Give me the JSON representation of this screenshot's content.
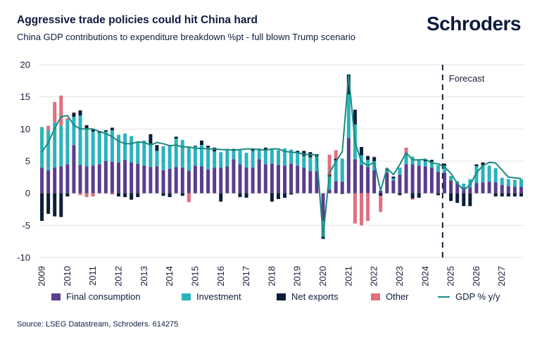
{
  "header": {
    "title": "Aggressive trade policies could hit China hard",
    "subtitle": "China GDP contributions to expenditure breakdown %pt - full blown Trump scenario",
    "brand": "Schroders"
  },
  "footer": {
    "source": "Source: LSEG Datastream, Schroders. 614275"
  },
  "colors": {
    "final_consumption": "#5b3d8c",
    "investment": "#2bb3bb",
    "net_exports": "#0b1f3a",
    "other": "#e0707e",
    "gdp": "#1b8a80",
    "grid": "#e3e3e3",
    "forecast_line": "#0b1f3a"
  },
  "chart_data": {
    "type": "bar",
    "stacked": true,
    "title": "China GDP contributions to expenditure breakdown %pt - full blown Trump scenario",
    "xlabel": "",
    "ylabel": "",
    "ylim": [
      -10,
      20
    ],
    "yticks": [
      20,
      15,
      10,
      5,
      0,
      -5,
      -10
    ],
    "x_tick_labels": [
      "2009",
      "2010",
      "2011",
      "2012",
      "2013",
      "2014",
      "2015",
      "2016",
      "2017",
      "2018",
      "2019",
      "2020",
      "2021",
      "2022",
      "2023",
      "2024",
      "2025",
      "2026",
      "2027"
    ],
    "grid": true,
    "legend_position": "bottom",
    "annotation": "Forecast",
    "forecast_start_period": "2024 Q4",
    "categories": [
      "2009 Q1",
      "2009 Q2",
      "2009 Q3",
      "2009 Q4",
      "2010 Q1",
      "2010 Q2",
      "2010 Q3",
      "2010 Q4",
      "2011 Q1",
      "2011 Q2",
      "2011 Q3",
      "2011 Q4",
      "2012 Q1",
      "2012 Q2",
      "2012 Q3",
      "2012 Q4",
      "2013 Q1",
      "2013 Q2",
      "2013 Q3",
      "2013 Q4",
      "2014 Q1",
      "2014 Q2",
      "2014 Q3",
      "2014 Q4",
      "2015 Q1",
      "2015 Q2",
      "2015 Q3",
      "2015 Q4",
      "2016 Q1",
      "2016 Q2",
      "2016 Q3",
      "2016 Q4",
      "2017 Q1",
      "2017 Q2",
      "2017 Q3",
      "2017 Q4",
      "2018 Q1",
      "2018 Q2",
      "2018 Q3",
      "2018 Q4",
      "2019 Q1",
      "2019 Q2",
      "2019 Q3",
      "2019 Q4",
      "2020 Q1",
      "2020 Q2",
      "2020 Q3",
      "2020 Q4",
      "2021 Q1",
      "2021 Q2",
      "2021 Q3",
      "2021 Q4",
      "2022 Q1",
      "2022 Q2",
      "2022 Q3",
      "2022 Q4",
      "2023 Q1",
      "2023 Q2",
      "2023 Q3",
      "2023 Q4",
      "2024 Q1",
      "2024 Q2",
      "2024 Q3",
      "2024 Q4",
      "2025 Q1",
      "2025 Q2",
      "2025 Q3",
      "2025 Q4",
      "2026 Q1",
      "2026 Q2",
      "2026 Q3",
      "2026 Q4",
      "2027 Q1",
      "2027 Q2",
      "2027 Q3",
      "2027 Q4"
    ],
    "series": [
      {
        "name": "Final consumption",
        "values": [
          4.0,
          3.6,
          4.0,
          4.2,
          4.5,
          7.5,
          4.4,
          4.2,
          4.3,
          4.5,
          5.0,
          4.9,
          4.8,
          5.2,
          4.8,
          4.6,
          4.3,
          4.1,
          4.2,
          3.6,
          3.8,
          4.1,
          4.0,
          3.5,
          4.3,
          4.2,
          3.7,
          4.0,
          4.0,
          4.2,
          5.3,
          4.5,
          4.0,
          4.0,
          5.3,
          4.5,
          4.6,
          4.4,
          4.3,
          4.6,
          4.3,
          4.0,
          3.5,
          3.4,
          -4.3,
          0.6,
          1.9,
          1.8,
          8.6,
          5.3,
          4.4,
          4.1,
          3.6,
          0.4,
          3.2,
          2.0,
          2.9,
          4.5,
          4.5,
          4.3,
          4.2,
          4.0,
          3.3,
          3.2,
          2.0,
          1.6,
          0.9,
          0.9,
          1.6,
          1.7,
          1.8,
          1.7,
          1.3,
          1.1,
          1.0,
          1.0
        ]
      },
      {
        "name": "Investment",
        "values": [
          6.3,
          6.2,
          7.0,
          6.3,
          6.9,
          4.4,
          7.7,
          5.9,
          5.3,
          4.9,
          4.6,
          4.9,
          4.3,
          4.1,
          4.1,
          3.4,
          3.9,
          3.6,
          2.4,
          3.7,
          3.6,
          4.4,
          4.3,
          3.6,
          3.0,
          3.3,
          3.4,
          2.5,
          2.4,
          2.5,
          1.3,
          2.3,
          2.3,
          2.6,
          1.7,
          2.3,
          2.2,
          2.3,
          2.7,
          2.2,
          1.9,
          1.8,
          2.1,
          2.3,
          -2.4,
          2.0,
          3.2,
          3.6,
          6.8,
          5.4,
          1.5,
          1.1,
          1.4,
          0.0,
          0.4,
          0.3,
          1.1,
          1.5,
          1.2,
          1.0,
          0.8,
          0.9,
          1.1,
          1.1,
          0.7,
          0.3,
          0.6,
          1.3,
          2.6,
          2.7,
          2.5,
          2.2,
          1.1,
          1.1,
          1.1,
          1.2
        ]
      },
      {
        "name": "Net exports",
        "values": [
          -4.3,
          -3.2,
          -3.6,
          -3.7,
          -0.5,
          0.6,
          0.8,
          0.5,
          0.4,
          0.3,
          0.2,
          0.4,
          -0.5,
          -0.6,
          -1.0,
          -0.6,
          0.0,
          1.5,
          0.9,
          -0.4,
          -0.6,
          0.3,
          -0.4,
          0.1,
          0.1,
          0.7,
          0.3,
          0.6,
          -1.3,
          0.2,
          0.3,
          -0.6,
          -0.7,
          0.2,
          0.0,
          0.3,
          -1.3,
          -0.9,
          -0.7,
          -0.2,
          0.4,
          0.8,
          0.8,
          0.4,
          -0.4,
          0.3,
          0.3,
          -0.1,
          3.1,
          2.3,
          1.3,
          0.6,
          0.6,
          -0.4,
          0.2,
          0.3,
          -0.3,
          0.1,
          -0.8,
          -0.7,
          0.2,
          0.3,
          -0.3,
          0.3,
          -1.2,
          -1.5,
          -2.0,
          -2.0,
          0.3,
          0.4,
          0.0,
          -0.5,
          -0.5,
          -0.5,
          -0.5,
          -0.5
        ]
      },
      {
        "name": "Other",
        "values": [
          0.0,
          0.7,
          3.2,
          4.7,
          0.3,
          0.1,
          -0.3,
          -0.6,
          -0.5,
          0.0,
          0.0,
          -0.2,
          0.0,
          0.0,
          0.0,
          0.0,
          0.0,
          0.0,
          0.0,
          0.0,
          0.0,
          0.0,
          0.0,
          -1.4,
          0.0,
          0.0,
          0.0,
          0.0,
          0.0,
          0.0,
          0.0,
          0.0,
          0.0,
          0.0,
          0.0,
          0.0,
          0.0,
          0.0,
          0.0,
          0.0,
          0.0,
          0.0,
          0.0,
          0.0,
          0.0,
          3.1,
          1.3,
          0.0,
          0.0,
          -4.7,
          -5.0,
          -4.3,
          0.1,
          -2.5,
          0.1,
          0.0,
          0.0,
          1.0,
          -0.2,
          0.0,
          0.0,
          0.0,
          0.0,
          0.0,
          0.0,
          0.0,
          0.0,
          0.0,
          0.0,
          0.0,
          0.0,
          0.0,
          0.0,
          0.0,
          0.0,
          0.0
        ]
      }
    ],
    "line_series": {
      "name": "GDP % y/y",
      "values": [
        6.4,
        7.9,
        10.1,
        11.9,
        12.1,
        10.6,
        10.0,
        10.0,
        10.0,
        9.6,
        9.3,
        8.8,
        8.1,
        7.7,
        7.7,
        8.0,
        7.9,
        7.5,
        7.9,
        7.7,
        7.4,
        7.5,
        7.2,
        7.2,
        7.0,
        7.0,
        6.9,
        6.9,
        6.8,
        6.8,
        6.7,
        6.8,
        6.9,
        6.9,
        6.8,
        6.7,
        6.9,
        6.9,
        6.5,
        6.4,
        6.3,
        6.1,
        6.0,
        6.0,
        -6.8,
        3.2,
        4.9,
        6.5,
        18.4,
        7.9,
        4.9,
        4.3,
        4.8,
        0.4,
        3.9,
        2.9,
        4.5,
        6.3,
        5.2,
        5.2,
        5.3,
        4.7,
        4.6,
        4.1,
        3.1,
        1.5,
        0.5,
        1.3,
        3.2,
        4.3,
        4.8,
        4.7,
        3.6,
        2.5,
        2.4,
        2.3
      ]
    }
  }
}
